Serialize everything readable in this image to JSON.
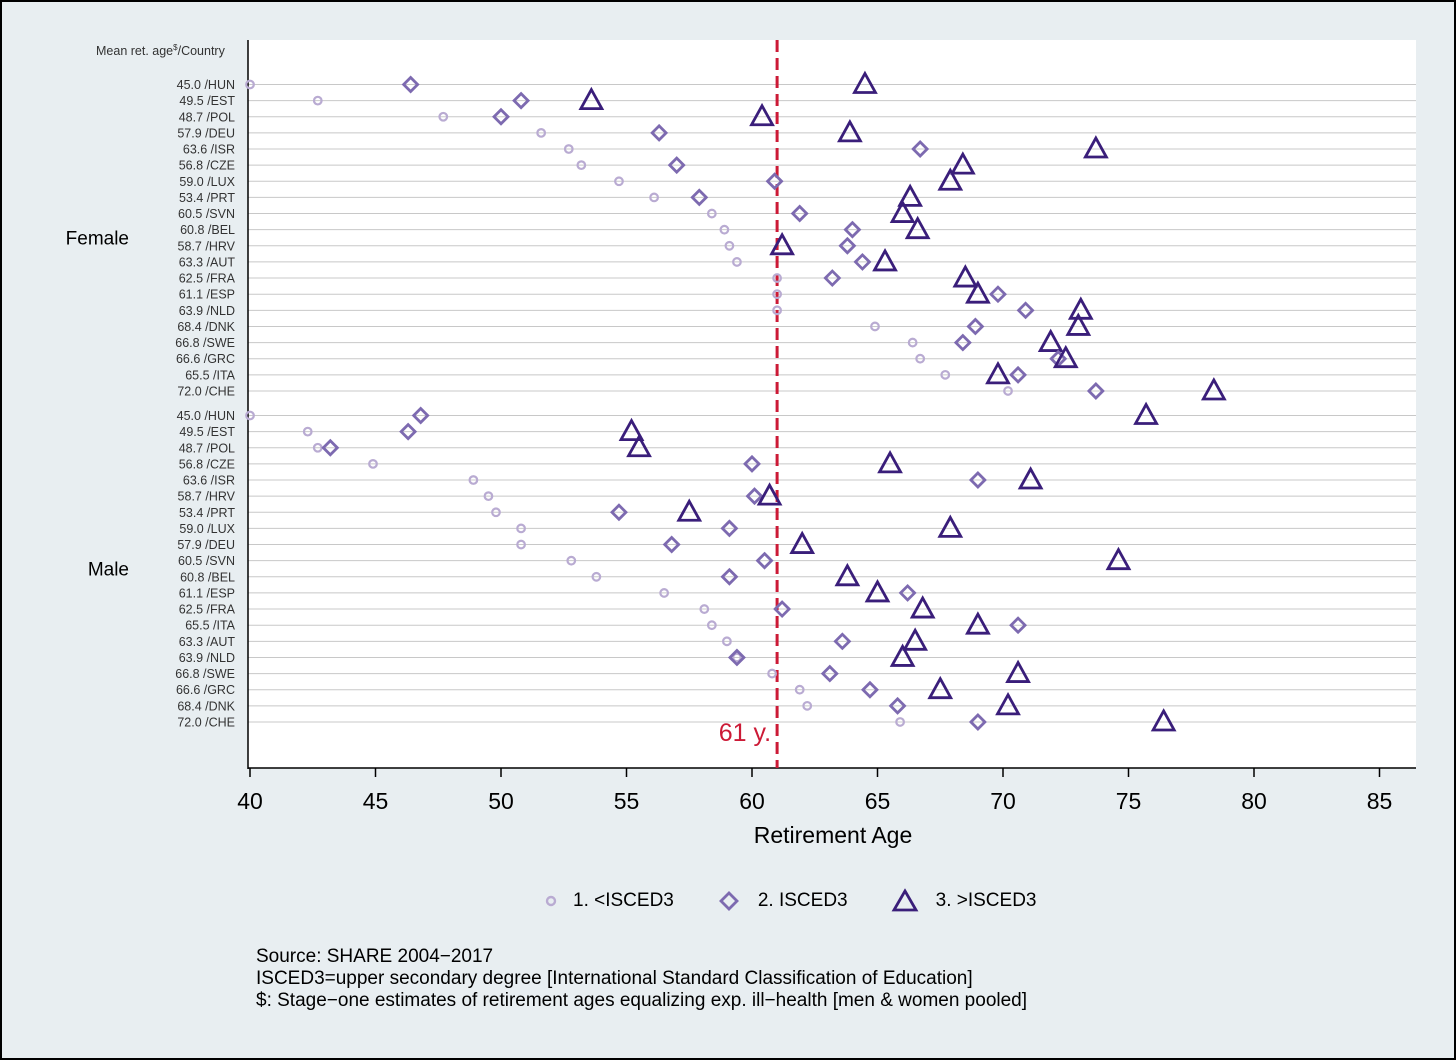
{
  "chart_data": {
    "type": "scatter",
    "title": "",
    "xlabel": "Retirement Age",
    "ylabel_header": "Mean ret. age$/Country",
    "xlim": [
      40,
      86
    ],
    "xticks": [
      40,
      45,
      50,
      55,
      60,
      65,
      70,
      75,
      80,
      85
    ],
    "reference_line": {
      "x": 61,
      "label": "61 y."
    },
    "series_names": [
      "1. <ISCED3",
      "2. ISCED3",
      "3. >ISCED3"
    ],
    "colors": {
      "isced_low": "#b9abd2",
      "isced_mid": "#7d6ab0",
      "isced_high": "#3a1e7a",
      "ref_line": "#cc1a36",
      "grid": "#c8c8c8"
    },
    "groups": [
      {
        "name": "Female",
        "rows": [
          {
            "label": "45.0  /HUN",
            "values": [
              40.0,
              46.4,
              64.5
            ]
          },
          {
            "label": "49.5  /EST",
            "values": [
              42.7,
              50.8,
              53.6
            ]
          },
          {
            "label": "48.7  /POL",
            "values": [
              47.7,
              50.0,
              60.4
            ]
          },
          {
            "label": "57.9  /DEU",
            "values": [
              51.6,
              56.3,
              63.9
            ]
          },
          {
            "label": "63.6  /ISR",
            "values": [
              52.7,
              66.7,
              73.7
            ]
          },
          {
            "label": "56.8  /CZE",
            "values": [
              53.2,
              57.0,
              68.4
            ]
          },
          {
            "label": "59.0  /LUX",
            "values": [
              54.7,
              60.9,
              67.9
            ]
          },
          {
            "label": "53.4  /PRT",
            "values": [
              56.1,
              57.9,
              66.3
            ]
          },
          {
            "label": "60.5  /SVN",
            "values": [
              58.4,
              61.9,
              66.0
            ]
          },
          {
            "label": "60.8  /BEL",
            "values": [
              58.9,
              64.0,
              66.6
            ]
          },
          {
            "label": "58.7  /HRV",
            "values": [
              59.1,
              63.8,
              61.2
            ]
          },
          {
            "label": "63.3  /AUT",
            "values": [
              59.4,
              64.4,
              65.3
            ]
          },
          {
            "label": "62.5  /FRA",
            "values": [
              61.0,
              63.2,
              68.5
            ]
          },
          {
            "label": "61.1  /ESP",
            "values": [
              61.0,
              69.8,
              69.0
            ]
          },
          {
            "label": "63.9  /NLD",
            "values": [
              61.0,
              70.9,
              73.1
            ]
          },
          {
            "label": "68.4  /DNK",
            "values": [
              64.9,
              68.9,
              73.0
            ]
          },
          {
            "label": "66.8  /SWE",
            "values": [
              66.4,
              68.4,
              71.9
            ]
          },
          {
            "label": "66.6  /GRC",
            "values": [
              66.7,
              72.2,
              72.5
            ]
          },
          {
            "label": "65.5  /ITA",
            "values": [
              67.7,
              70.6,
              69.8
            ]
          },
          {
            "label": "72.0  /CHE",
            "values": [
              70.2,
              73.7,
              78.4
            ]
          }
        ]
      },
      {
        "name": "Male",
        "rows": [
          {
            "label": "45.0  /HUN",
            "values": [
              40.0,
              46.8,
              75.7
            ]
          },
          {
            "label": "49.5  /EST",
            "values": [
              42.3,
              46.3,
              55.2
            ]
          },
          {
            "label": "48.7  /POL",
            "values": [
              42.7,
              43.2,
              55.5
            ]
          },
          {
            "label": "56.8  /CZE",
            "values": [
              44.9,
              60.0,
              65.5
            ]
          },
          {
            "label": "63.6  /ISR",
            "values": [
              48.9,
              69.0,
              71.1
            ]
          },
          {
            "label": "58.7  /HRV",
            "values": [
              49.5,
              60.1,
              60.7
            ]
          },
          {
            "label": "53.4  /PRT",
            "values": [
              49.8,
              54.7,
              57.5
            ]
          },
          {
            "label": "59.0  /LUX",
            "values": [
              50.8,
              59.1,
              67.9
            ]
          },
          {
            "label": "57.9  /DEU",
            "values": [
              50.8,
              56.8,
              62.0
            ]
          },
          {
            "label": "60.5  /SVN",
            "values": [
              52.8,
              60.5,
              74.6
            ]
          },
          {
            "label": "60.8  /BEL",
            "values": [
              53.8,
              59.1,
              63.8
            ]
          },
          {
            "label": "61.1  /ESP",
            "values": [
              56.5,
              66.2,
              65.0
            ]
          },
          {
            "label": "62.5  /FRA",
            "values": [
              58.1,
              61.2,
              66.8
            ]
          },
          {
            "label": "65.5  /ITA",
            "values": [
              58.4,
              70.6,
              69.0
            ]
          },
          {
            "label": "63.3  /AUT",
            "values": [
              59.0,
              63.6,
              66.5
            ]
          },
          {
            "label": "63.9  /NLD",
            "values": [
              59.4,
              59.4,
              66.0
            ]
          },
          {
            "label": "66.8  /SWE",
            "values": [
              60.8,
              63.1,
              70.6
            ]
          },
          {
            "label": "66.6  /GRC",
            "values": [
              61.9,
              64.7,
              67.5
            ]
          },
          {
            "label": "68.4  /DNK",
            "values": [
              62.2,
              65.8,
              70.2
            ]
          },
          {
            "label": "72.0  /CHE",
            "values": [
              65.9,
              69.0,
              76.4
            ]
          }
        ]
      }
    ]
  },
  "notes": {
    "line1": "Source: SHARE 2004−2017",
    "line2": "ISCED3=upper secondary degree [International Standard Classification of Education]",
    "line3": "$: Stage−one estimates of retirement ages  equalizing exp. ill−health [men & women pooled]"
  }
}
